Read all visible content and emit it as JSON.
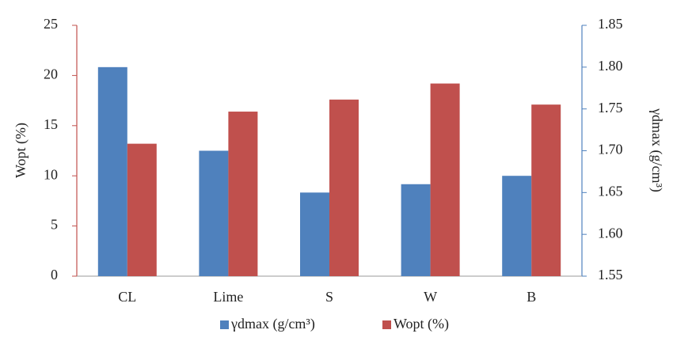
{
  "chart_data": {
    "type": "bar",
    "categories": [
      "CL",
      "Lime",
      "S",
      "W",
      "B"
    ],
    "series": [
      {
        "name": "γdmax (g/cm³)",
        "color": "#4f81bd",
        "axis": "y2",
        "values": [
          1.8,
          1.7,
          1.65,
          1.66,
          1.67
        ]
      },
      {
        "name": "Wopt (%)",
        "color": "#c0504d",
        "values": [
          13.2,
          16.4,
          17.6,
          19.2,
          17.1
        ]
      }
    ],
    "y_label": "Wopt (%)",
    "y2_label": "γdmax (g/cm³)",
    "ylim": [
      0,
      25
    ],
    "yticks": [
      0,
      5,
      10,
      15,
      20,
      25
    ],
    "y2lim": [
      1.55,
      1.85
    ],
    "y2ticks": [
      1.55,
      {
        "value": 1.6,
        "label": "1.60"
      },
      1.65,
      {
        "value": 1.7,
        "label": "1.70"
      },
      1.75,
      {
        "value": 1.8,
        "label": "1.80"
      },
      1.85
    ],
    "legend": "bottom"
  }
}
